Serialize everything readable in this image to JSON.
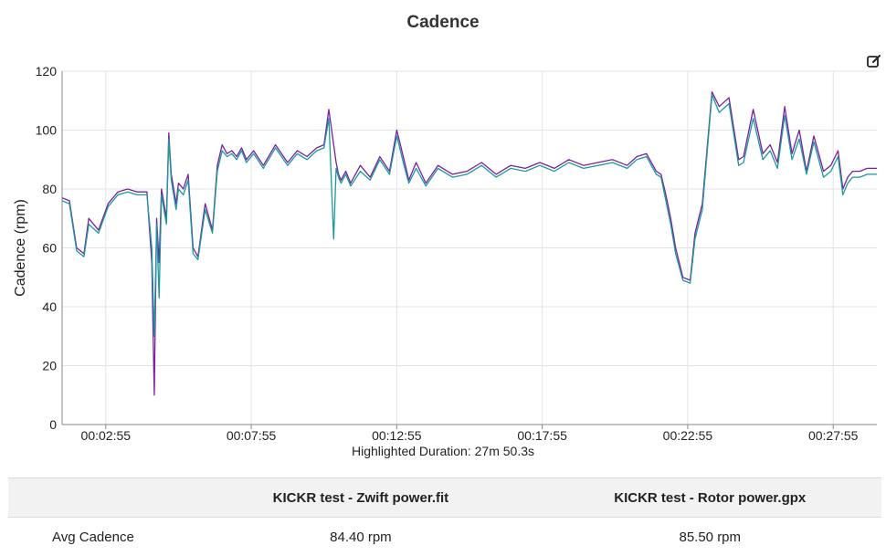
{
  "chart_data": {
    "type": "line",
    "title": "Cadence",
    "ylabel": "Cadence (rpm)",
    "xlabel": "",
    "ylim": [
      0,
      120
    ],
    "yticks": [
      0,
      20,
      40,
      60,
      80,
      100,
      120
    ],
    "xticks": [
      "00:02:55",
      "00:07:55",
      "00:12:55",
      "00:17:55",
      "00:22:55",
      "00:27:55"
    ],
    "xlim": [
      "00:01:25",
      "00:29:25"
    ],
    "grid": true,
    "series": [
      {
        "color": "#7a1fa2",
        "x": [
          "00:01:25",
          "00:01:40",
          "00:01:55",
          "00:02:10",
          "00:02:20",
          "00:02:40",
          "00:03:00",
          "00:03:20",
          "00:03:40",
          "00:04:00",
          "00:04:20",
          "00:04:30",
          "00:04:35",
          "00:04:40",
          "00:04:45",
          "00:04:50",
          "00:05:00",
          "00:05:05",
          "00:05:10",
          "00:05:20",
          "00:05:25",
          "00:05:35",
          "00:05:45",
          "00:05:55",
          "00:06:05",
          "00:06:20",
          "00:06:35",
          "00:06:45",
          "00:06:55",
          "00:07:05",
          "00:07:15",
          "00:07:25",
          "00:07:35",
          "00:07:45",
          "00:08:00",
          "00:08:20",
          "00:08:45",
          "00:09:10",
          "00:09:30",
          "00:09:50",
          "00:10:10",
          "00:10:25",
          "00:10:35",
          "00:10:45",
          "00:10:50",
          "00:10:55",
          "00:11:00",
          "00:11:10",
          "00:11:20",
          "00:11:40",
          "00:12:00",
          "00:12:20",
          "00:12:40",
          "00:12:55",
          "00:13:10",
          "00:13:20",
          "00:13:35",
          "00:13:55",
          "00:14:20",
          "00:14:50",
          "00:15:20",
          "00:15:50",
          "00:16:20",
          "00:16:50",
          "00:17:20",
          "00:17:50",
          "00:18:20",
          "00:18:50",
          "00:19:20",
          "00:19:50",
          "00:20:20",
          "00:20:50",
          "00:21:10",
          "00:21:30",
          "00:21:50",
          "00:22:00",
          "00:22:10",
          "00:22:20",
          "00:22:30",
          "00:22:45",
          "00:23:00",
          "00:23:10",
          "00:23:25",
          "00:23:45",
          "00:24:00",
          "00:24:20",
          "00:24:40",
          "00:24:50",
          "00:25:10",
          "00:25:30",
          "00:25:45",
          "00:26:00",
          "00:26:15",
          "00:26:30",
          "00:26:45",
          "00:27:00",
          "00:27:15",
          "00:27:35",
          "00:27:50",
          "00:28:05",
          "00:28:15",
          "00:28:25",
          "00:28:35",
          "00:28:50",
          "00:29:05",
          "00:29:25"
        ],
        "y": [
          77,
          76,
          60,
          58,
          70,
          66,
          75,
          79,
          80,
          79,
          79,
          55,
          10,
          70,
          55,
          80,
          70,
          99,
          85,
          75,
          82,
          80,
          85,
          60,
          57,
          75,
          66,
          88,
          95,
          92,
          93,
          91,
          94,
          90,
          93,
          88,
          95,
          89,
          93,
          91,
          94,
          95,
          107,
          95,
          89,
          85,
          83,
          86,
          82,
          88,
          84,
          91,
          86,
          100,
          90,
          83,
          89,
          82,
          88,
          85,
          86,
          89,
          85,
          88,
          87,
          89,
          87,
          90,
          88,
          89,
          90,
          88,
          91,
          92,
          86,
          85,
          78,
          70,
          60,
          50,
          49,
          65,
          75,
          113,
          108,
          111,
          90,
          91,
          107,
          92,
          95,
          89,
          108,
          92,
          100,
          86,
          98,
          86,
          88,
          93,
          80,
          84,
          86,
          86,
          87,
          87
        ]
      },
      {
        "color": "#1a9a9a",
        "x": [
          "00:01:25",
          "00:01:40",
          "00:01:55",
          "00:02:10",
          "00:02:20",
          "00:02:40",
          "00:03:00",
          "00:03:20",
          "00:03:40",
          "00:04:00",
          "00:04:20",
          "00:04:30",
          "00:04:35",
          "00:04:40",
          "00:04:45",
          "00:04:50",
          "00:05:00",
          "00:05:05",
          "00:05:10",
          "00:05:20",
          "00:05:25",
          "00:05:35",
          "00:05:45",
          "00:05:55",
          "00:06:05",
          "00:06:20",
          "00:06:35",
          "00:06:45",
          "00:06:55",
          "00:07:05",
          "00:07:15",
          "00:07:25",
          "00:07:35",
          "00:07:45",
          "00:08:00",
          "00:08:20",
          "00:08:45",
          "00:09:10",
          "00:09:30",
          "00:09:50",
          "00:10:10",
          "00:10:25",
          "00:10:35",
          "00:10:45",
          "00:10:50",
          "00:10:55",
          "00:11:00",
          "00:11:10",
          "00:11:20",
          "00:11:40",
          "00:12:00",
          "00:12:20",
          "00:12:40",
          "00:12:55",
          "00:13:10",
          "00:13:20",
          "00:13:35",
          "00:13:55",
          "00:14:20",
          "00:14:50",
          "00:15:20",
          "00:15:50",
          "00:16:20",
          "00:16:50",
          "00:17:20",
          "00:17:50",
          "00:18:20",
          "00:18:50",
          "00:19:20",
          "00:19:50",
          "00:20:20",
          "00:20:50",
          "00:21:10",
          "00:21:30",
          "00:21:50",
          "00:22:00",
          "00:22:10",
          "00:22:20",
          "00:22:30",
          "00:22:45",
          "00:23:00",
          "00:23:10",
          "00:23:25",
          "00:23:45",
          "00:24:00",
          "00:24:20",
          "00:24:40",
          "00:24:50",
          "00:25:10",
          "00:25:30",
          "00:25:45",
          "00:26:00",
          "00:26:15",
          "00:26:30",
          "00:26:45",
          "00:27:00",
          "00:27:15",
          "00:27:35",
          "00:27:50",
          "00:28:05",
          "00:28:15",
          "00:28:25",
          "00:28:35",
          "00:28:50",
          "00:29:05",
          "00:29:25"
        ],
        "y": [
          76,
          75,
          59,
          57,
          68,
          65,
          74,
          78,
          79,
          78,
          78,
          60,
          30,
          68,
          43,
          78,
          68,
          97,
          83,
          73,
          80,
          78,
          83,
          58,
          56,
          73,
          65,
          86,
          93,
          91,
          92,
          90,
          93,
          89,
          92,
          87,
          94,
          88,
          92,
          90,
          93,
          94,
          104,
          63,
          87,
          84,
          82,
          85,
          81,
          86,
          83,
          90,
          85,
          98,
          88,
          82,
          87,
          81,
          87,
          84,
          85,
          88,
          84,
          87,
          86,
          88,
          86,
          89,
          87,
          88,
          89,
          87,
          90,
          91,
          85,
          84,
          76,
          68,
          58,
          49,
          48,
          63,
          73,
          112,
          106,
          109,
          88,
          89,
          104,
          90,
          93,
          87,
          105,
          90,
          97,
          85,
          96,
          84,
          86,
          91,
          78,
          82,
          84,
          84,
          85,
          85
        ]
      }
    ]
  },
  "highlight_text": "Highlighted Duration: 27m 50.3s",
  "table": {
    "headers": [
      "",
      "KICKR test - Zwift power.fit",
      "KICKR test - Rotor power.gpx"
    ],
    "rows": [
      {
        "label": "Avg Cadence",
        "values": [
          "84.40 rpm",
          "85.50 rpm"
        ]
      }
    ]
  },
  "icons": {
    "edit": "edit-icon"
  }
}
